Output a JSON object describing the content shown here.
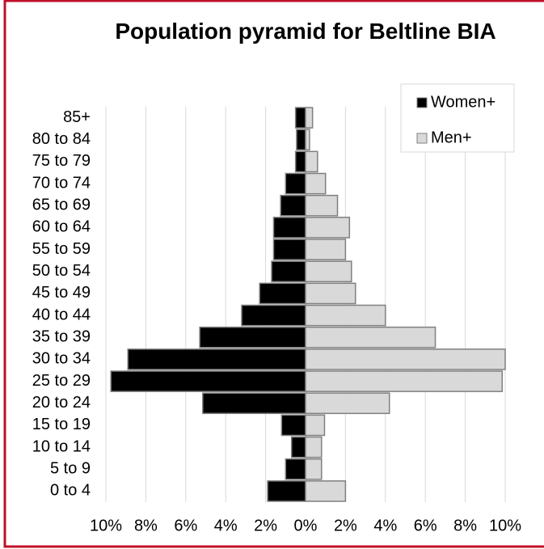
{
  "chart_data": {
    "type": "pyramid",
    "title": "Population pyramid for Beltline BIA",
    "categories": [
      "85+",
      "80 to 84",
      "75 to 79",
      "70 to 74",
      "65 to 69",
      "60 to 64",
      "55 to 59",
      "50 to 54",
      "45 to 49",
      "40 to 44",
      "35 to 39",
      "30 to 34",
      "25 to 29",
      "20 to 24",
      "15 to 19",
      "10 to 14",
      "5 to 9",
      "0 to 4"
    ],
    "series": [
      {
        "name": "Women+",
        "color": "#000000",
        "values": [
          -0.5,
          -0.45,
          -0.5,
          -1.0,
          -1.25,
          -1.6,
          -1.6,
          -1.7,
          -2.3,
          -3.2,
          -5.3,
          -8.9,
          -9.75,
          -5.15,
          -1.2,
          -0.7,
          -1.0,
          -1.9
        ]
      },
      {
        "name": "Men+",
        "color": "#d9d9d9",
        "values": [
          0.35,
          0.2,
          0.6,
          1.0,
          1.6,
          2.2,
          2.0,
          2.3,
          2.5,
          4.0,
          6.5,
          10.0,
          9.85,
          4.2,
          0.95,
          0.8,
          0.8,
          2.0
        ]
      }
    ],
    "xlim": [
      -10,
      10
    ],
    "xticks": [
      {
        "value": -10,
        "label": "10%"
      },
      {
        "value": -8,
        "label": "8%"
      },
      {
        "value": -6,
        "label": "6%"
      },
      {
        "value": -4,
        "label": "4%"
      },
      {
        "value": -2,
        "label": "2%"
      },
      {
        "value": 0,
        "label": "0%"
      },
      {
        "value": 2,
        "label": "2%"
      },
      {
        "value": 4,
        "label": "4%"
      },
      {
        "value": 6,
        "label": "6%"
      },
      {
        "value": 8,
        "label": "8%"
      },
      {
        "value": 10,
        "label": "10%"
      }
    ],
    "grid": true,
    "legend": "top-right"
  }
}
